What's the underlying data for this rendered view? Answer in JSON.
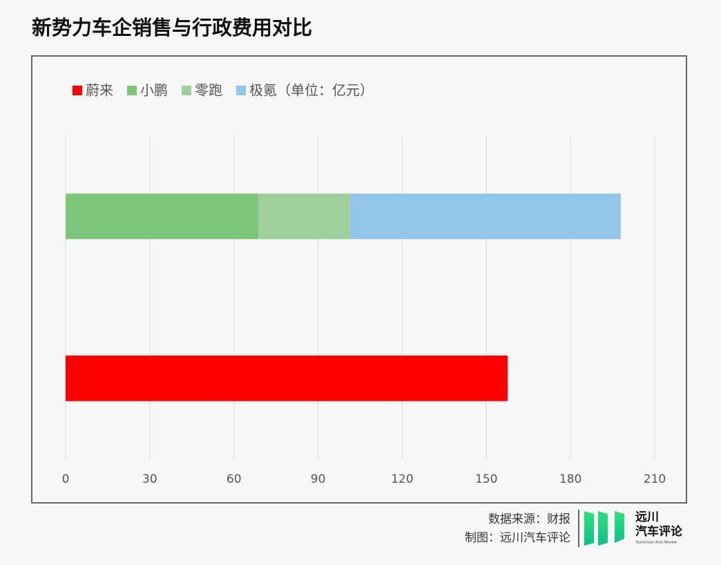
{
  "chart_data": {
    "type": "stacked-barh",
    "title": "新势力车企销售与行政费用对比",
    "categories": [
      null,
      null
    ],
    "series": [
      {
        "name": "蔚来",
        "color": "#ff0000",
        "values": [
          null,
          157.6
        ]
      },
      {
        "name": "小鹏",
        "color": "#7dc67a",
        "values": [
          68.7,
          null
        ]
      },
      {
        "name": "零跑",
        "color": "#9fd09c",
        "values": [
          32.7,
          null
        ]
      },
      {
        "name": "极氪",
        "color": "#94c6ea",
        "values": [
          96.5,
          null
        ]
      }
    ],
    "unit_note": "（单位：亿元）",
    "xlim": [
      0,
      210
    ],
    "xticks": [
      0,
      30,
      60,
      90,
      120,
      150,
      180,
      210
    ],
    "grid": true,
    "legend": "top-left"
  },
  "footer": {
    "source": "数据来源：财报",
    "credit": "制图：远川汽车评论",
    "logo_line1": "远川",
    "logo_line2": "汽车评论",
    "logo_en": "Yuanchuan Auto Review"
  }
}
